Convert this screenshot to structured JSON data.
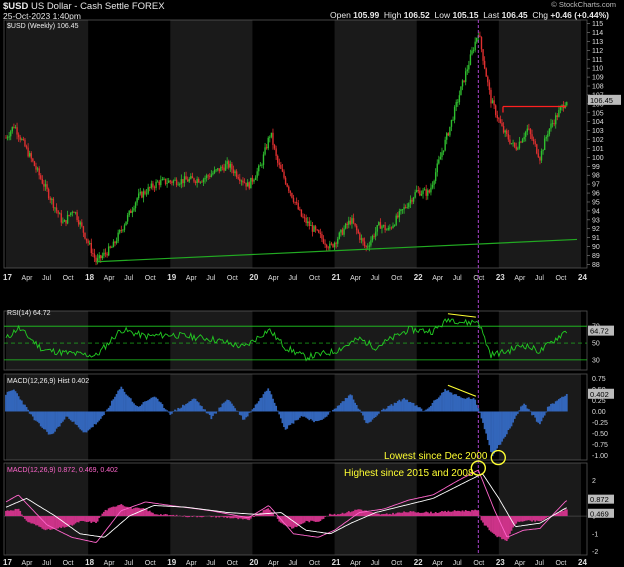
{
  "header": {
    "symbol": "$USD",
    "name": "US Dollar - Cash Settle",
    "exchange": "FOREX",
    "date": "25-Oct-2023 1:40pm",
    "open_label": "Open",
    "open": "105.99",
    "high_label": "High",
    "high": "106.52",
    "low_label": "Low",
    "low": "105.15",
    "last_label": "Last",
    "last": "106.45",
    "chg_label": "Chg",
    "chg": "+0.46 (+0.44%)",
    "brand": "© StockCharts.com"
  },
  "colors": {
    "background": "#000000",
    "shade": "#1a1a1a",
    "up_candle": "#2fbf2f",
    "down_candle": "#e03030",
    "support_line": "#22aa22",
    "resistance_line": "#ff2020",
    "trend_annotation": "#ffff33",
    "rsi_line": "#22cc22",
    "hist": "#3366bb",
    "macd_line": "#ff66cc",
    "signal_line": "#ffffff",
    "macd_hist": "#cc3388",
    "marker_line": "#aa44cc"
  },
  "chart_data": [
    {
      "type": "candlestick",
      "panel": "price",
      "label": "$USD (Weekly) 106.45",
      "last_tag": "106.45",
      "yticks": [
        88,
        89,
        90,
        91,
        92,
        93,
        94,
        95,
        96,
        97,
        98,
        99,
        100,
        101,
        102,
        103,
        104,
        105,
        106,
        107,
        108,
        109,
        110,
        111,
        112,
        113,
        114,
        115
      ],
      "ylim": [
        87.6,
        115.4
      ],
      "x_tick_labels": [
        "17",
        "Apr",
        "Jul",
        "Oct",
        "18",
        "Apr",
        "Jul",
        "Oct",
        "19",
        "Apr",
        "Jul",
        "Oct",
        "20",
        "Apr",
        "Jul",
        "Oct",
        "21",
        "Apr",
        "Jul",
        "Oct",
        "22",
        "Apr",
        "Jul",
        "Oct",
        "23",
        "Apr",
        "Jul",
        "Oct",
        "24"
      ],
      "x_range": [
        "Jan 2017",
        "Jan 2024"
      ],
      "anchors": [
        {
          "date": "2017.00",
          "value": 102.2
        },
        {
          "date": "2017.10",
          "value": 103.6
        },
        {
          "date": "2017.35",
          "value": 99.0
        },
        {
          "date": "2017.70",
          "value": 92.5
        },
        {
          "date": "2017.82",
          "value": 94.3
        },
        {
          "date": "2018.10",
          "value": 88.3
        },
        {
          "date": "2018.30",
          "value": 90.0
        },
        {
          "date": "2018.60",
          "value": 95.5
        },
        {
          "date": "2018.85",
          "value": 97.2
        },
        {
          "date": "2019.40",
          "value": 97.6
        },
        {
          "date": "2019.70",
          "value": 99.2
        },
        {
          "date": "2019.95",
          "value": 96.8
        },
        {
          "date": "2020.10",
          "value": 99.0
        },
        {
          "date": "2020.22",
          "value": 102.8
        },
        {
          "date": "2020.30",
          "value": 99.5
        },
        {
          "date": "2020.60",
          "value": 93.3
        },
        {
          "date": "2020.95",
          "value": 89.9
        },
        {
          "date": "2021.20",
          "value": 93.0
        },
        {
          "date": "2021.38",
          "value": 89.8
        },
        {
          "date": "2021.55",
          "value": 92.5
        },
        {
          "date": "2021.65",
          "value": 91.8
        },
        {
          "date": "2022.00",
          "value": 96.2
        },
        {
          "date": "2022.15",
          "value": 96.0
        },
        {
          "date": "2022.40",
          "value": 103.3
        },
        {
          "date": "2022.55",
          "value": 108.0
        },
        {
          "date": "2022.75",
          "value": 114.1
        },
        {
          "date": "2022.90",
          "value": 106.5
        },
        {
          "date": "2023.05",
          "value": 103.0
        },
        {
          "date": "2023.20",
          "value": 101.0
        },
        {
          "date": "2023.35",
          "value": 103.2
        },
        {
          "date": "2023.50",
          "value": 100.0
        },
        {
          "date": "2023.60",
          "value": 103.0
        },
        {
          "date": "2023.82",
          "value": 106.45
        }
      ],
      "support_line": {
        "from": {
          "date": "2018.10",
          "value": 88.3
        },
        "to": {
          "date": "2024.00",
          "value": 90.8
        }
      },
      "resistance_line": {
        "from": {
          "date": "2023.05",
          "value": 105.7
        },
        "to": {
          "date": "2023.82",
          "value": 105.7
        }
      },
      "marker_date": "2022.75"
    },
    {
      "type": "line",
      "panel": "rsi",
      "label": "RSI(14) 64.72",
      "value_tag": "64.72",
      "yticks": [
        30,
        50,
        70
      ],
      "ylim": [
        18,
        88
      ],
      "levels": [
        70,
        50,
        30
      ],
      "anchors": [
        {
          "date": "2017.00",
          "value": 55
        },
        {
          "date": "2017.15",
          "value": 68
        },
        {
          "date": "2017.45",
          "value": 42
        },
        {
          "date": "2017.75",
          "value": 38
        },
        {
          "date": "2018.10",
          "value": 35
        },
        {
          "date": "2018.40",
          "value": 66
        },
        {
          "date": "2018.70",
          "value": 58
        },
        {
          "date": "2019.00",
          "value": 60
        },
        {
          "date": "2019.50",
          "value": 55
        },
        {
          "date": "2019.90",
          "value": 45
        },
        {
          "date": "2020.20",
          "value": 66
        },
        {
          "date": "2020.40",
          "value": 45
        },
        {
          "date": "2020.65",
          "value": 33
        },
        {
          "date": "2021.00",
          "value": 40
        },
        {
          "date": "2021.30",
          "value": 55
        },
        {
          "date": "2021.50",
          "value": 45
        },
        {
          "date": "2021.90",
          "value": 66
        },
        {
          "date": "2022.20",
          "value": 64
        },
        {
          "date": "2022.40",
          "value": 79
        },
        {
          "date": "2022.60",
          "value": 74
        },
        {
          "date": "2022.75",
          "value": 76
        },
        {
          "date": "2022.90",
          "value": 36
        },
        {
          "date": "2023.10",
          "value": 40
        },
        {
          "date": "2023.30",
          "value": 48
        },
        {
          "date": "2023.50",
          "value": 40
        },
        {
          "date": "2023.82",
          "value": 64.72
        }
      ],
      "annotation": {
        "from": {
          "date": "2022.38",
          "value": 80
        },
        "to": {
          "date": "2022.72",
          "value": 76
        }
      }
    },
    {
      "type": "bar",
      "panel": "macd_hist",
      "label": "MACD(12,26,9) Hist 0.402",
      "value_tag": "0.402",
      "yticks": [
        0.75,
        0.5,
        0.25,
        0.0,
        -0.25,
        -0.5,
        -0.75,
        -1.0
      ],
      "ylim": [
        -1.1,
        0.85
      ],
      "anchors": [
        {
          "date": "2017.00",
          "value": 0.4
        },
        {
          "date": "2017.10",
          "value": 0.5
        },
        {
          "date": "2017.35",
          "value": -0.2
        },
        {
          "date": "2017.55",
          "value": -0.55
        },
        {
          "date": "2017.75",
          "value": -0.1
        },
        {
          "date": "2017.95",
          "value": -0.5
        },
        {
          "date": "2018.15",
          "value": -0.2
        },
        {
          "date": "2018.40",
          "value": 0.55
        },
        {
          "date": "2018.60",
          "value": 0.1
        },
        {
          "date": "2018.80",
          "value": 0.35
        },
        {
          "date": "2019.00",
          "value": -0.05
        },
        {
          "date": "2019.30",
          "value": 0.3
        },
        {
          "date": "2019.50",
          "value": -0.15
        },
        {
          "date": "2019.70",
          "value": 0.3
        },
        {
          "date": "2019.90",
          "value": -0.2
        },
        {
          "date": "2020.20",
          "value": 0.55
        },
        {
          "date": "2020.40",
          "value": -0.4
        },
        {
          "date": "2020.60",
          "value": -0.1
        },
        {
          "date": "2020.80",
          "value": -0.25
        },
        {
          "date": "2021.00",
          "value": 0.05
        },
        {
          "date": "2021.20",
          "value": 0.4
        },
        {
          "date": "2021.40",
          "value": -0.3
        },
        {
          "date": "2021.60",
          "value": 0.05
        },
        {
          "date": "2021.85",
          "value": 0.3
        },
        {
          "date": "2022.10",
          "value": 0.0
        },
        {
          "date": "2022.35",
          "value": 0.5
        },
        {
          "date": "2022.55",
          "value": 0.3
        },
        {
          "date": "2022.70",
          "value": 0.3
        },
        {
          "date": "2022.80",
          "value": -0.2
        },
        {
          "date": "2022.92",
          "value": -1.0
        },
        {
          "date": "2023.10",
          "value": -0.5
        },
        {
          "date": "2023.30",
          "value": 0.2
        },
        {
          "date": "2023.50",
          "value": -0.3
        },
        {
          "date": "2023.60",
          "value": 0.1
        },
        {
          "date": "2023.82",
          "value": 0.402
        }
      ],
      "annotation": {
        "from": {
          "date": "2022.38",
          "value": 0.55
        },
        "to": {
          "date": "2022.72",
          "value": 0.3
        }
      },
      "circle_point": {
        "date": "2022.92",
        "value": -1.0,
        "note": "Lowest since Dec 2000"
      }
    },
    {
      "type": "line",
      "panel": "macd",
      "label": "MACD(12,26,9) 0.872, 0.469, 0.402",
      "value_tags": [
        "0.872",
        "0.469"
      ],
      "yticks": [
        2,
        1,
        0,
        -1,
        -2
      ],
      "ylim": [
        -2.2,
        3.0
      ],
      "series": [
        {
          "name": "MACD",
          "anchors": [
            {
              "date": "2017.00",
              "value": 0.8
            },
            {
              "date": "2017.15",
              "value": 1.2
            },
            {
              "date": "2017.50",
              "value": -0.5
            },
            {
              "date": "2017.80",
              "value": -1.2
            },
            {
              "date": "2018.10",
              "value": -1.5
            },
            {
              "date": "2018.40",
              "value": 0.3
            },
            {
              "date": "2018.70",
              "value": 0.8
            },
            {
              "date": "2019.00",
              "value": 0.6
            },
            {
              "date": "2019.50",
              "value": 0.3
            },
            {
              "date": "2019.95",
              "value": -0.1
            },
            {
              "date": "2020.20",
              "value": 0.6
            },
            {
              "date": "2020.50",
              "value": -1.0
            },
            {
              "date": "2020.80",
              "value": -1.2
            },
            {
              "date": "2021.00",
              "value": -0.8
            },
            {
              "date": "2021.30",
              "value": 0.2
            },
            {
              "date": "2021.60",
              "value": 0.4
            },
            {
              "date": "2021.90",
              "value": 0.9
            },
            {
              "date": "2022.20",
              "value": 1.2
            },
            {
              "date": "2022.50",
              "value": 2.0
            },
            {
              "date": "2022.75",
              "value": 2.6
            },
            {
              "date": "2022.95",
              "value": 0.3
            },
            {
              "date": "2023.10",
              "value": -1.2
            },
            {
              "date": "2023.30",
              "value": -0.8
            },
            {
              "date": "2023.50",
              "value": -0.7
            },
            {
              "date": "2023.82",
              "value": 0.872
            }
          ]
        },
        {
          "name": "Signal",
          "anchors": [
            {
              "date": "2017.00",
              "value": 0.5
            },
            {
              "date": "2017.25",
              "value": 1.0
            },
            {
              "date": "2017.60",
              "value": 0.0
            },
            {
              "date": "2017.90",
              "value": -1.0
            },
            {
              "date": "2018.20",
              "value": -1.2
            },
            {
              "date": "2018.50",
              "value": 0.0
            },
            {
              "date": "2018.80",
              "value": 0.6
            },
            {
              "date": "2019.20",
              "value": 0.5
            },
            {
              "date": "2019.70",
              "value": 0.2
            },
            {
              "date": "2020.05",
              "value": 0.1
            },
            {
              "date": "2020.35",
              "value": 0.2
            },
            {
              "date": "2020.65",
              "value": -0.8
            },
            {
              "date": "2020.95",
              "value": -1.0
            },
            {
              "date": "2021.20",
              "value": -0.4
            },
            {
              "date": "2021.50",
              "value": 0.2
            },
            {
              "date": "2021.85",
              "value": 0.6
            },
            {
              "date": "2022.20",
              "value": 1.0
            },
            {
              "date": "2022.50",
              "value": 1.7
            },
            {
              "date": "2022.80",
              "value": 2.4
            },
            {
              "date": "2023.00",
              "value": 1.0
            },
            {
              "date": "2023.20",
              "value": -0.6
            },
            {
              "date": "2023.50",
              "value": -0.4
            },
            {
              "date": "2023.82",
              "value": 0.469
            }
          ]
        }
      ],
      "circle_point": {
        "date": "2022.75",
        "value": 2.6,
        "note": "Highest since 2015 and 2008"
      }
    }
  ],
  "annotations": {
    "lowest": "Lowest since Dec 2000",
    "highest": "Highest since 2015 and 2008"
  }
}
